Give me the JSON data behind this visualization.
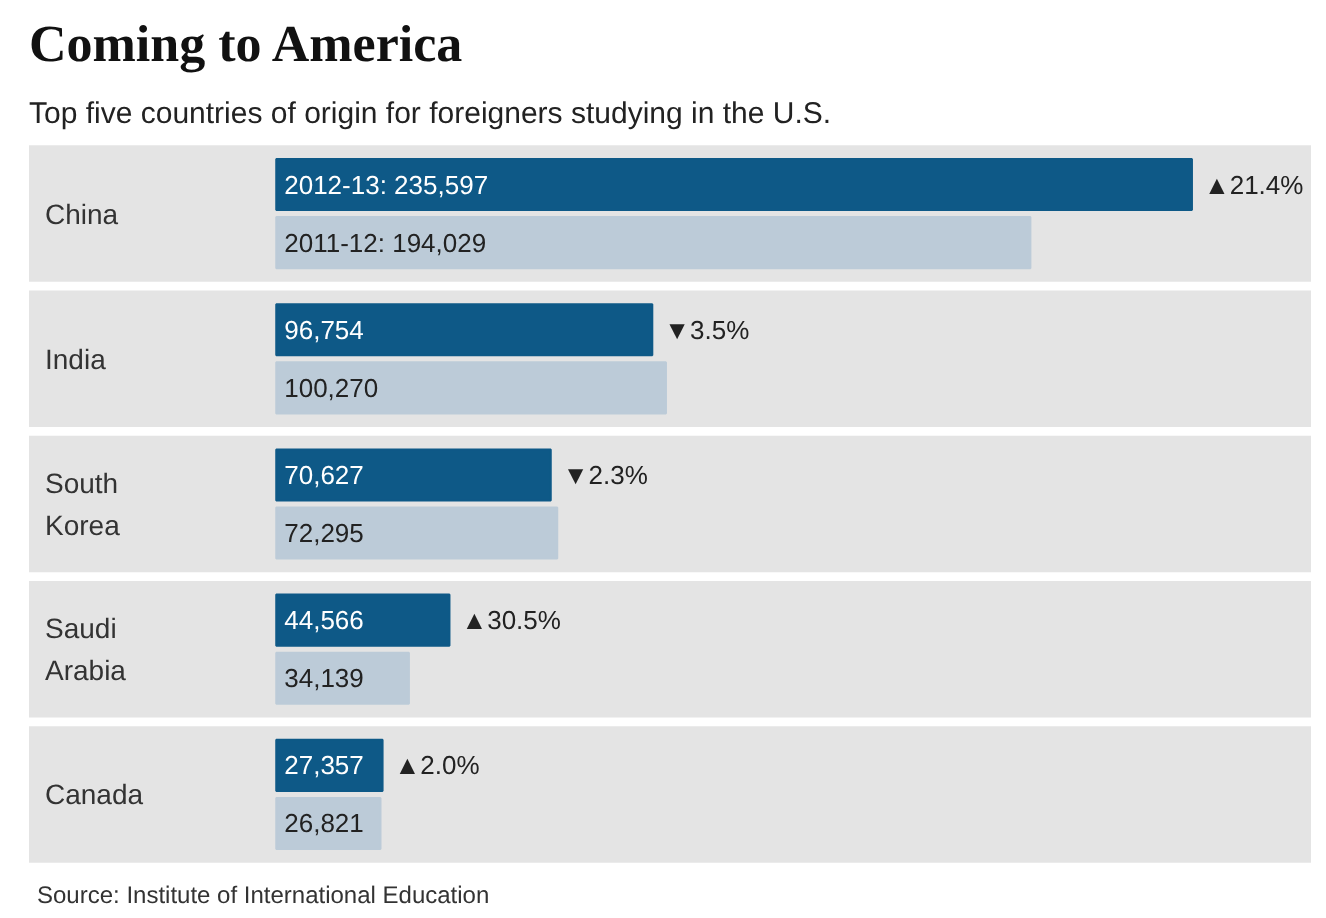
{
  "chart_data": {
    "type": "bar",
    "orientation": "horizontal",
    "title": "Coming to America",
    "subtitle": "Top five countries of origin for foreigners studying in the U.S.",
    "categories": [
      "China",
      "India",
      "South Korea",
      "Saudi Arabia",
      "Canada"
    ],
    "series": [
      {
        "name": "2012-13:",
        "color": "#0e5987",
        "values": [
          235597,
          96754,
          70627,
          44566,
          27357
        ],
        "value_labels": [
          "235,597",
          "96,754",
          "70,627",
          "44,566",
          "27,357"
        ]
      },
      {
        "name": "2011-12:",
        "color": "#bccbd8",
        "values": [
          194029,
          100270,
          72295,
          34139,
          26821
        ],
        "value_labels": [
          "194,029",
          "100,270",
          "72,295",
          "34,139",
          "26,821"
        ]
      }
    ],
    "annotations": [
      {
        "text": "▲21.4%",
        "x": 235597,
        "y": "China"
      },
      {
        "text": "▼3.5%",
        "x": 96754,
        "y": "India"
      },
      {
        "text": "▼2.3%",
        "x": 70627,
        "y": "South Korea"
      },
      {
        "text": "▲30.5%",
        "x": 44566,
        "y": "Saudi Arabia"
      },
      {
        "text": "▲2.0%",
        "x": 27357,
        "y": "Canada"
      },
      "Source: Institute of International Education"
    ],
    "tick_labels": "y",
    "legend": false,
    "grid": false
  }
}
